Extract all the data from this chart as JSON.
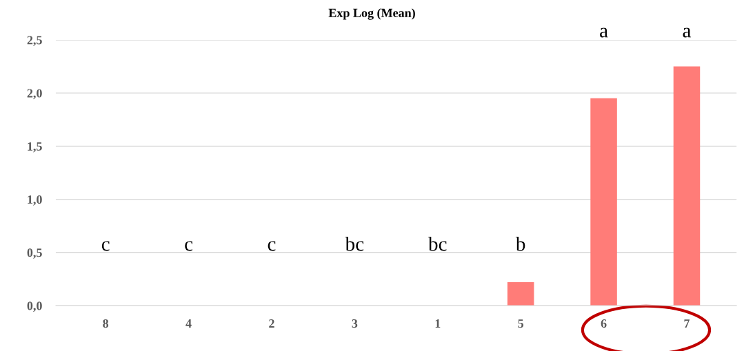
{
  "chart_data": {
    "type": "bar",
    "title": "Exp Log (Mean)",
    "categories": [
      "8",
      "4",
      "2",
      "3",
      "1",
      "5",
      "6",
      "7"
    ],
    "values": [
      0,
      0,
      0,
      0,
      0,
      0.22,
      1.95,
      2.25
    ],
    "color": "#ff7c78",
    "ylim": [
      0,
      2.5
    ],
    "yticks": [
      {
        "value": 0,
        "label": "0,0"
      },
      {
        "value": 0.5,
        "label": "0,5"
      },
      {
        "value": 1.0,
        "label": "1,0"
      },
      {
        "value": 1.5,
        "label": "1,5"
      },
      {
        "value": 2.0,
        "label": "2,0"
      },
      {
        "value": 2.5,
        "label": "2,5"
      }
    ],
    "grid": "y",
    "annotations": [
      "c",
      "c",
      "c",
      "bc",
      "bc",
      "b",
      "a",
      "a"
    ]
  }
}
